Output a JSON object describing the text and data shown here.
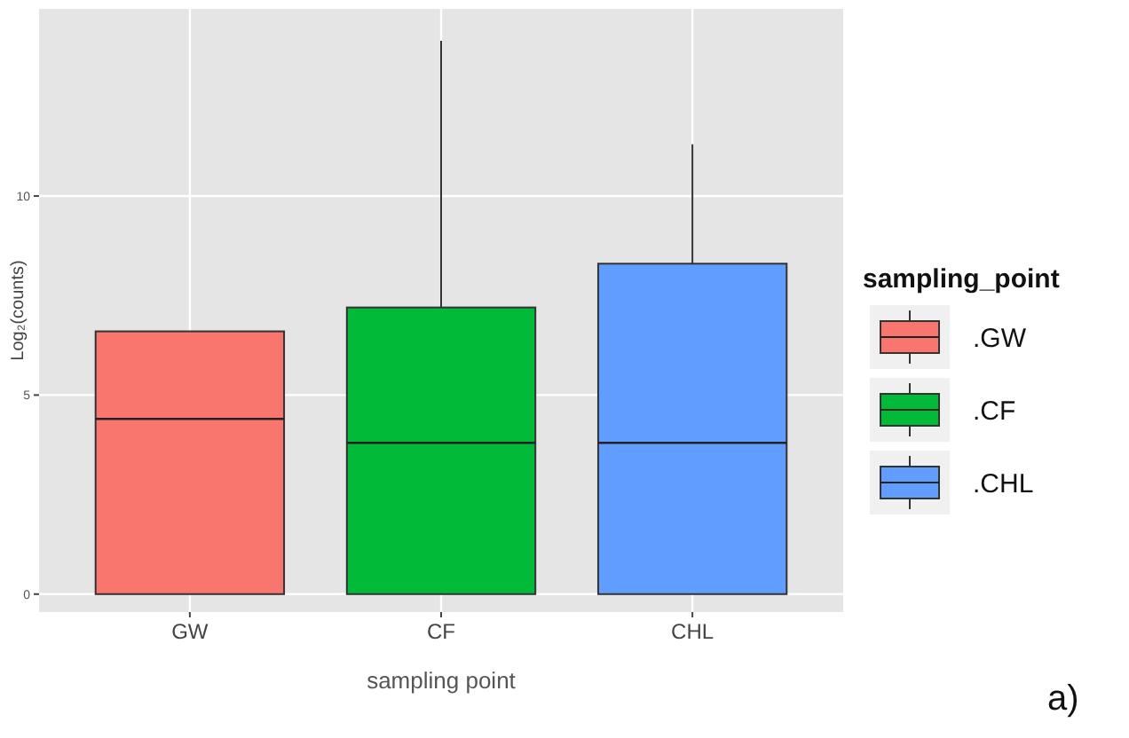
{
  "chart_data": {
    "type": "box",
    "xlabel": "sampling point",
    "ylabel": "Log₂(counts)",
    "legend_title": "sampling_point",
    "categories": [
      "GW",
      "CF",
      "CHL"
    ],
    "series": [
      {
        "name": ".GW",
        "color": "#f8766d",
        "boxes": [
          {
            "low": 0,
            "q1": 0,
            "median": 4.4,
            "q3": 6.6,
            "high": 6.6
          },
          null,
          null
        ]
      },
      {
        "name": ".CF",
        "color": "#00ba38",
        "boxes": [
          null,
          {
            "low": 0,
            "q1": 0,
            "median": 3.8,
            "q3": 7.2,
            "high": 13.9
          },
          null
        ]
      },
      {
        "name": ".CHL",
        "color": "#619cff",
        "boxes": [
          null,
          null,
          {
            "low": 0,
            "q1": 0,
            "median": 3.8,
            "q3": 8.3,
            "high": 11.3
          }
        ]
      }
    ],
    "ylim": [
      -0.45,
      14.7
    ],
    "yticks": [
      0,
      5,
      10
    ],
    "grid": true,
    "legend": "right",
    "annotations": [
      "a)"
    ]
  }
}
